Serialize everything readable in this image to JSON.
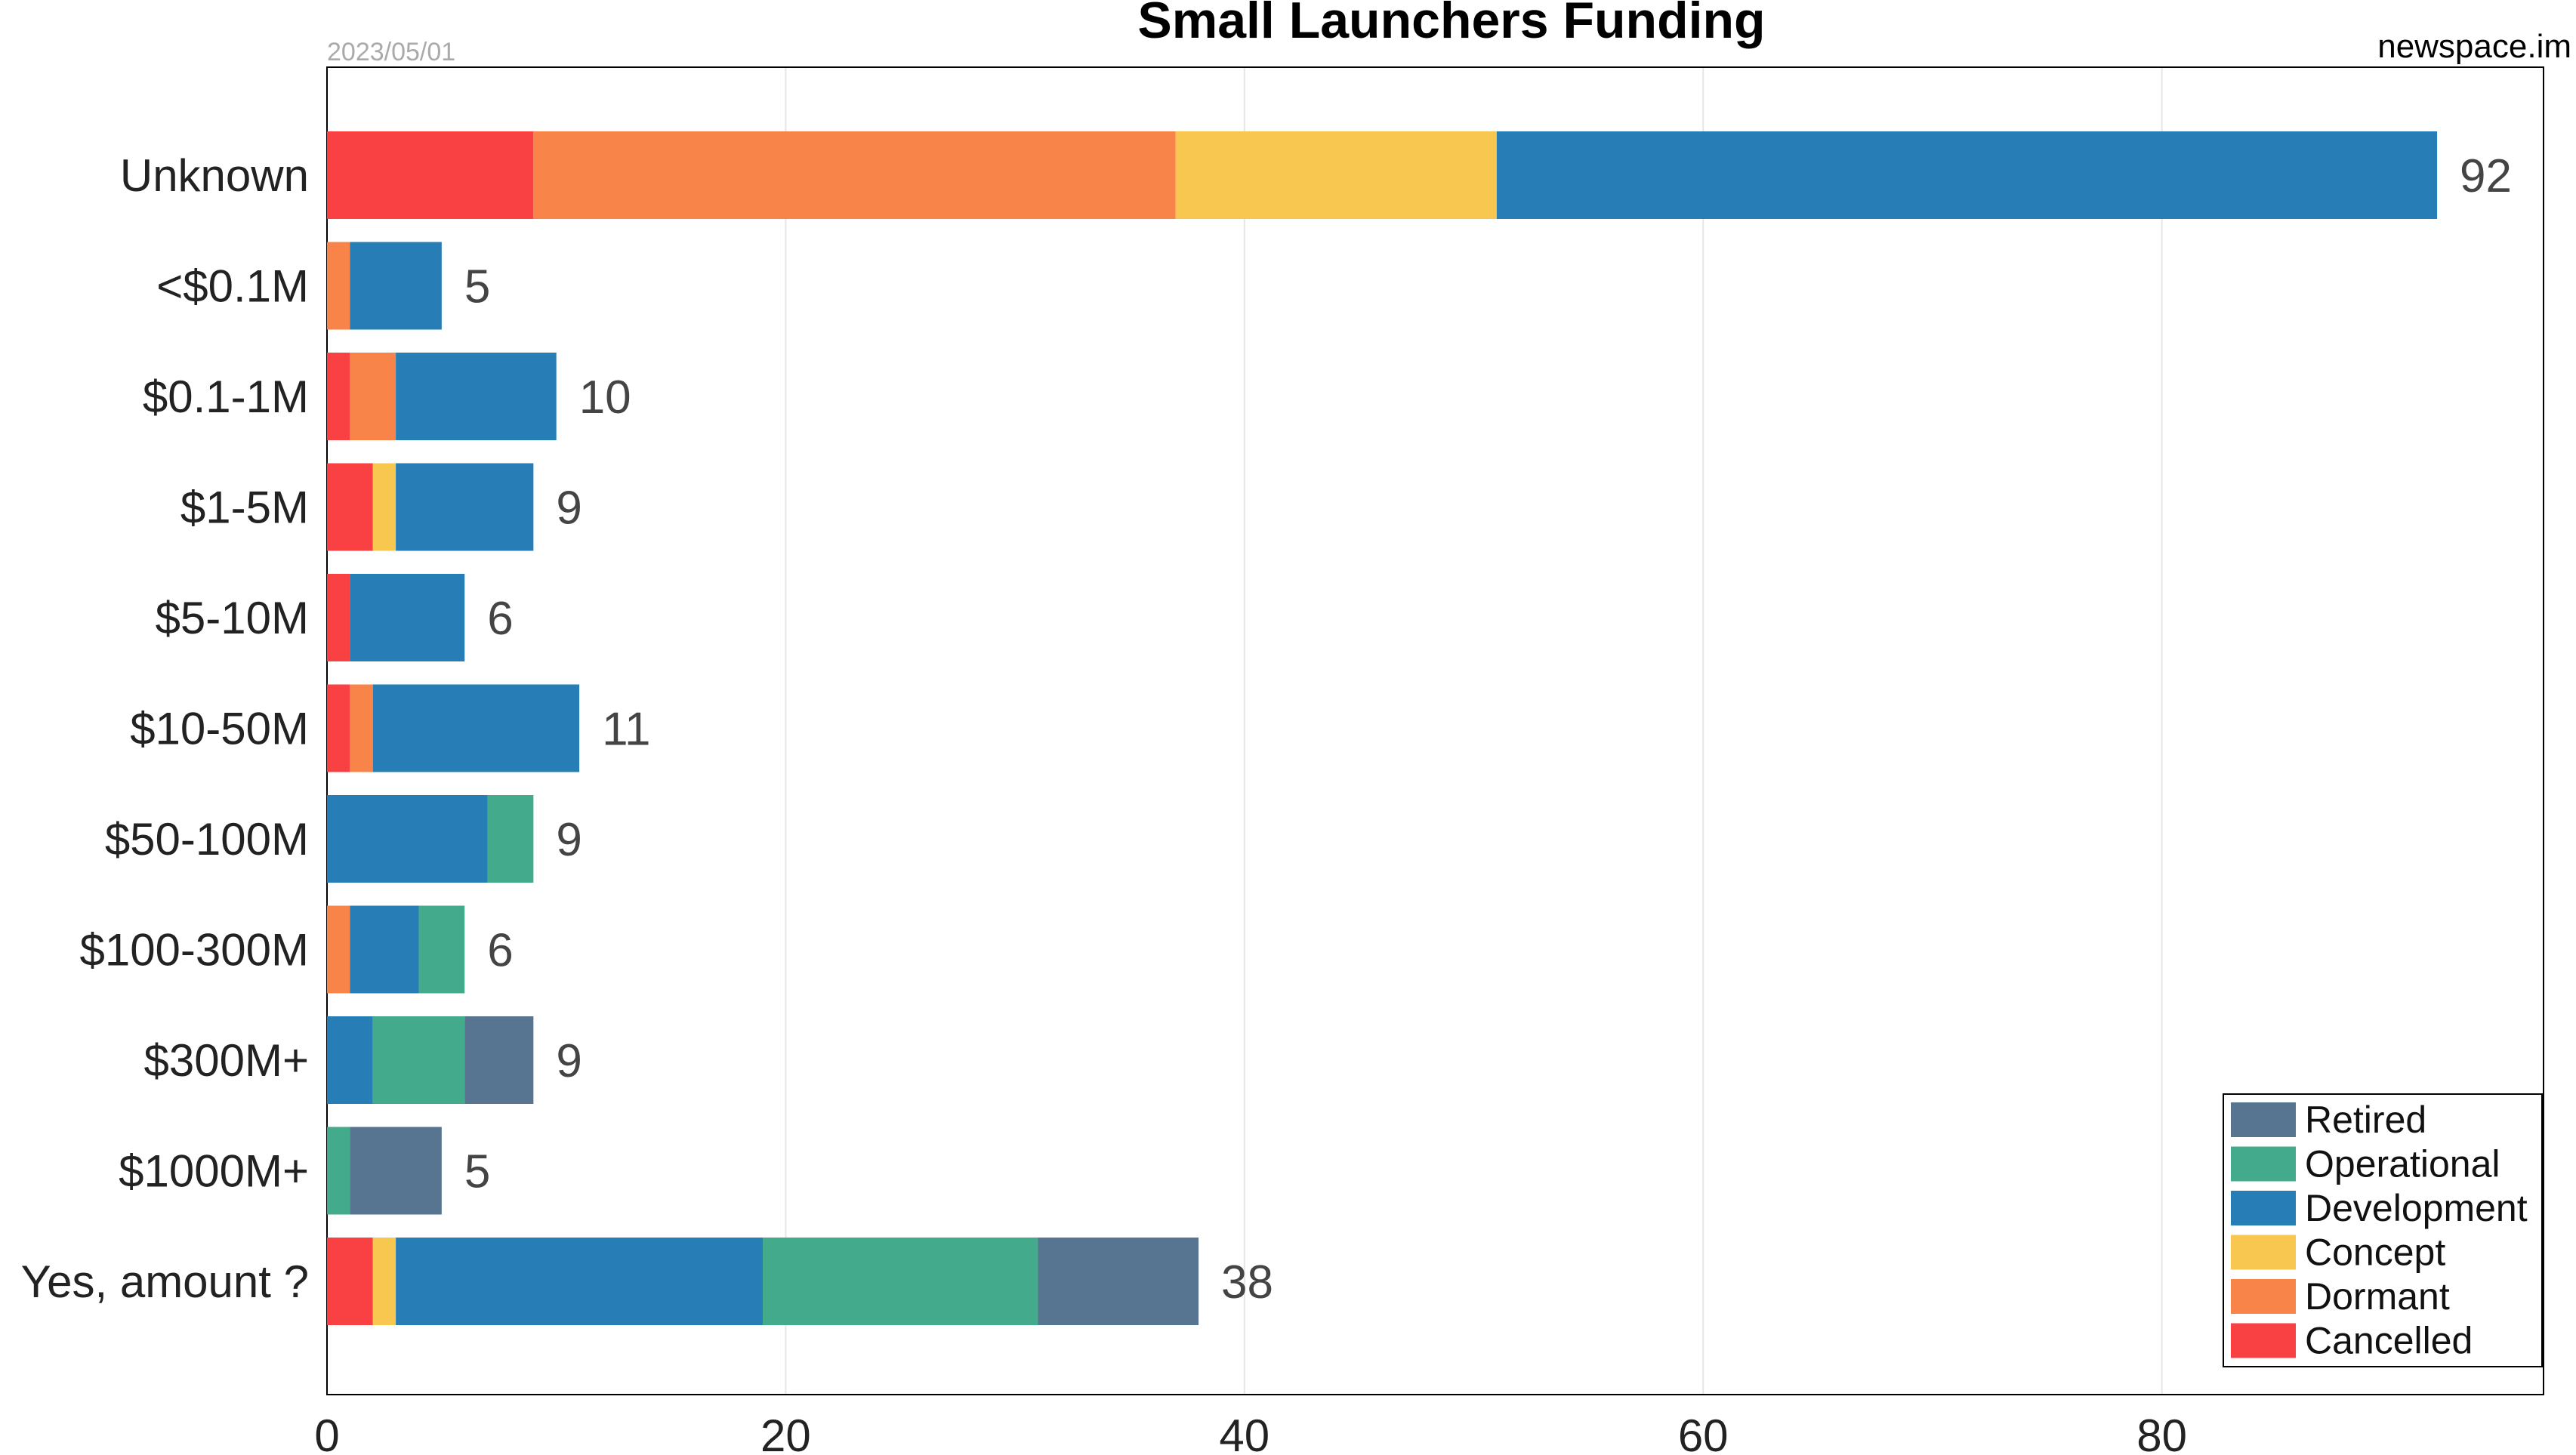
{
  "chart_data": {
    "type": "bar",
    "orientation": "horizontal",
    "stacked": true,
    "title": "Small Launchers Funding",
    "date": "2023/05/01",
    "source": "newspace.im",
    "xlabel": "",
    "ylabel": "",
    "xlim": [
      0,
      97
    ],
    "xticks": [
      0,
      20,
      40,
      60,
      80
    ],
    "grid": true,
    "legend_position": "bottom-right",
    "categories": [
      "Unknown",
      "<$0.1M",
      "$0.1-1M",
      "$1-5M",
      "$5-10M",
      "$10-50M",
      "$50-100M",
      "$100-300M",
      "$300M+",
      "$1000M+",
      "Yes, amount ?"
    ],
    "totals": [
      92,
      5,
      10,
      9,
      6,
      11,
      9,
      6,
      9,
      5,
      38
    ],
    "series": [
      {
        "name": "Cancelled",
        "color": "#f94144",
        "values": [
          9,
          0,
          1,
          2,
          1,
          1,
          0,
          0,
          0,
          0,
          2
        ]
      },
      {
        "name": "Dormant",
        "color": "#f8844a",
        "values": [
          28,
          1,
          2,
          0,
          0,
          1,
          0,
          1,
          0,
          0,
          0
        ]
      },
      {
        "name": "Concept",
        "color": "#f8c750",
        "values": [
          14,
          0,
          0,
          1,
          0,
          0,
          0,
          0,
          0,
          0,
          1
        ]
      },
      {
        "name": "Development",
        "color": "#277db5",
        "values": [
          41,
          4,
          7,
          6,
          5,
          9,
          7,
          3,
          2,
          0,
          16
        ]
      },
      {
        "name": "Operational",
        "color": "#43aa8b",
        "values": [
          0,
          0,
          0,
          0,
          0,
          0,
          2,
          2,
          4,
          1,
          12
        ]
      },
      {
        "name": "Retired",
        "color": "#577590",
        "values": [
          0,
          0,
          0,
          0,
          0,
          0,
          0,
          0,
          3,
          4,
          7
        ]
      }
    ],
    "legend_order": [
      "Retired",
      "Operational",
      "Development",
      "Concept",
      "Dormant",
      "Cancelled"
    ]
  }
}
